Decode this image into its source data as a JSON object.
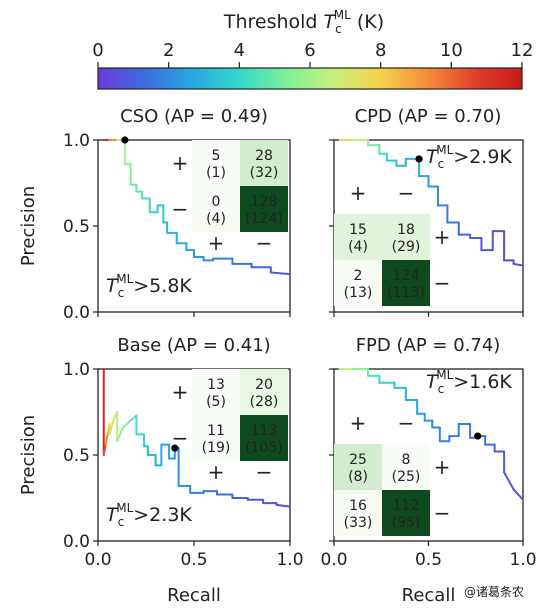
{
  "colorbar": {
    "label_main": "Threshold ",
    "label_symbol": "T",
    "label_sup": "ML",
    "label_sub": "c",
    "label_unit": " (K)",
    "ticks": [
      "0",
      "2",
      "4",
      "6",
      "8",
      "10",
      "12"
    ],
    "tick_values": [
      0,
      2,
      4,
      6,
      8,
      10,
      12
    ],
    "range": [
      0,
      12
    ],
    "colormap": [
      "#6a3bd8",
      "#3d6de0",
      "#28a8e2",
      "#33d9c7",
      "#7ef09a",
      "#c8f07a",
      "#f4d24a",
      "#f58c3a",
      "#e0402c",
      "#c81a1a"
    ]
  },
  "axis_text": {
    "xlabel": "Recall",
    "ylabel": "Precision",
    "xticks": [
      "0.0",
      "0.5",
      "1.0"
    ],
    "yticks": [
      "0.0",
      "0.5",
      "1.0"
    ]
  },
  "watermark": "@诸葛条农",
  "chart_data": [
    {
      "type": "line",
      "title": "CSO (AP = 0.49)",
      "xlabel": "Recall",
      "ylabel": "Precision",
      "xlim": [
        0,
        1
      ],
      "ylim": [
        0,
        1
      ],
      "threshold_label": ">5.8K",
      "threshold_point": {
        "x": 0.14,
        "y": 1.0
      },
      "series": [
        {
          "x": [
            0.03,
            0.06,
            0.1,
            0.14,
            0.14,
            0.17,
            0.17,
            0.2,
            0.2,
            0.23,
            0.23,
            0.27,
            0.27,
            0.31,
            0.31,
            0.34,
            0.34,
            0.36,
            0.36,
            0.41,
            0.41,
            0.46,
            0.46,
            0.5,
            0.5,
            0.55,
            0.55,
            0.6,
            0.6,
            0.7,
            0.7,
            0.8,
            0.8,
            0.9,
            0.9,
            1.0
          ],
          "y": [
            1.0,
            1.0,
            1.0,
            1.0,
            0.86,
            0.86,
            0.74,
            0.74,
            0.7,
            0.7,
            0.66,
            0.66,
            0.58,
            0.58,
            0.62,
            0.62,
            0.52,
            0.52,
            0.46,
            0.46,
            0.4,
            0.4,
            0.36,
            0.36,
            0.32,
            0.32,
            0.3,
            0.3,
            0.31,
            0.31,
            0.28,
            0.28,
            0.26,
            0.26,
            0.23,
            0.22
          ],
          "t": [
            12.0,
            10.5,
            8.0,
            6.4,
            5.8,
            5.5,
            5.2,
            5.0,
            4.8,
            4.6,
            4.4,
            4.2,
            4.0,
            3.8,
            3.6,
            3.5,
            3.3,
            3.2,
            3.0,
            2.9,
            2.8,
            2.6,
            2.5,
            2.4,
            2.3,
            2.1,
            2.0,
            1.9,
            1.8,
            1.6,
            1.5,
            1.3,
            1.2,
            1.0,
            0.8,
            0.6
          ]
        }
      ],
      "matrix": {
        "rows": [
          {
            "sign": "+",
            "cells": [
              {
                "main": "5",
                "paren": "(1)",
                "shade": "#f7fcf5"
              },
              {
                "main": "28",
                "paren": "(32)",
                "shade": "#d4ecce"
              }
            ]
          },
          {
            "sign": "−",
            "cells": [
              {
                "main": "0",
                "paren": "(4)",
                "shade": "#f7fcf5"
              },
              {
                "main": "128",
                "paren": "(124)",
                "shade": "#0f4a1f"
              }
            ]
          }
        ],
        "col_signs": [
          "+",
          "−"
        ]
      }
    },
    {
      "type": "line",
      "title": "CPD (AP = 0.70)",
      "xlabel": "Recall",
      "ylabel": "Precision",
      "xlim": [
        0,
        1
      ],
      "ylim": [
        0,
        1
      ],
      "threshold_label": ">2.9K",
      "threshold_point": {
        "x": 0.45,
        "y": 0.89
      },
      "series": [
        {
          "x": [
            0.03,
            0.1,
            0.18,
            0.18,
            0.24,
            0.24,
            0.28,
            0.28,
            0.33,
            0.33,
            0.38,
            0.38,
            0.45,
            0.45,
            0.5,
            0.5,
            0.55,
            0.55,
            0.6,
            0.6,
            0.66,
            0.66,
            0.72,
            0.72,
            0.78,
            0.78,
            0.84,
            0.84,
            0.9,
            0.9,
            0.95,
            0.95,
            1.0
          ],
          "y": [
            1.0,
            1.0,
            1.0,
            0.97,
            0.97,
            0.92,
            0.92,
            0.88,
            0.88,
            0.85,
            0.85,
            0.89,
            0.89,
            0.79,
            0.79,
            0.73,
            0.73,
            0.62,
            0.62,
            0.52,
            0.52,
            0.45,
            0.45,
            0.43,
            0.43,
            0.36,
            0.36,
            0.47,
            0.47,
            0.3,
            0.3,
            0.28,
            0.27
          ],
          "t": [
            8.0,
            7.0,
            6.0,
            5.5,
            5.0,
            4.6,
            4.2,
            3.8,
            3.5,
            3.2,
            3.0,
            2.95,
            2.9,
            2.7,
            2.5,
            2.3,
            2.1,
            1.9,
            1.7,
            1.5,
            1.35,
            1.2,
            1.1,
            1.0,
            0.9,
            0.8,
            0.7,
            0.6,
            0.5,
            0.4,
            0.35,
            0.3,
            0.25
          ]
        }
      ],
      "matrix": {
        "rows": [
          {
            "sign": "+",
            "cells": [
              {
                "main": "15",
                "paren": "(4)",
                "shade": "#e2f3dd"
              },
              {
                "main": "18",
                "paren": "(29)",
                "shade": "#e2f3dd"
              }
            ]
          },
          {
            "sign": "−",
            "cells": [
              {
                "main": "2",
                "paren": "(13)",
                "shade": "#f7fcf5"
              },
              {
                "main": "124",
                "paren": "(113)",
                "shade": "#0f4a1f"
              }
            ]
          }
        ],
        "col_signs": [
          "+",
          "−"
        ]
      }
    },
    {
      "type": "line",
      "title": "Base (AP = 0.41)",
      "xlabel": "Recall",
      "ylabel": "Precision",
      "xlim": [
        0,
        1
      ],
      "ylim": [
        0,
        1
      ],
      "threshold_label": ">2.3K",
      "threshold_point": {
        "x": 0.4,
        "y": 0.54
      },
      "series": [
        {
          "x": [
            0.03,
            0.03,
            0.04,
            0.05,
            0.06,
            0.06,
            0.08,
            0.1,
            0.1,
            0.13,
            0.17,
            0.2,
            0.2,
            0.24,
            0.24,
            0.26,
            0.26,
            0.3,
            0.3,
            0.33,
            0.33,
            0.37,
            0.37,
            0.4,
            0.4,
            0.42,
            0.42,
            0.48,
            0.48,
            0.55,
            0.55,
            0.62,
            0.62,
            0.7,
            0.7,
            0.78,
            0.78,
            0.86,
            0.86,
            0.93,
            0.93,
            1.0
          ],
          "y": [
            1.0,
            0.5,
            0.56,
            0.62,
            0.68,
            0.62,
            0.7,
            0.75,
            0.58,
            0.66,
            0.7,
            0.73,
            0.62,
            0.62,
            0.55,
            0.55,
            0.5,
            0.5,
            0.44,
            0.44,
            0.56,
            0.56,
            0.48,
            0.48,
            0.54,
            0.54,
            0.32,
            0.32,
            0.28,
            0.28,
            0.29,
            0.29,
            0.27,
            0.27,
            0.25,
            0.25,
            0.24,
            0.24,
            0.22,
            0.22,
            0.21,
            0.2
          ],
          "t": [
            12.0,
            11.0,
            10.0,
            9.0,
            8.2,
            8.0,
            7.2,
            6.6,
            6.0,
            5.6,
            5.0,
            4.5,
            4.2,
            3.9,
            3.6,
            3.4,
            3.2,
            3.0,
            2.9,
            2.8,
            2.7,
            2.6,
            2.5,
            2.4,
            2.3,
            2.2,
            2.1,
            2.0,
            1.8,
            1.6,
            1.5,
            1.4,
            1.3,
            1.2,
            1.1,
            1.0,
            0.9,
            0.8,
            0.7,
            0.6,
            0.5,
            0.4
          ]
        }
      ],
      "matrix": {
        "rows": [
          {
            "sign": "+",
            "cells": [
              {
                "main": "13",
                "paren": "(5)",
                "shade": "#f7fcf5"
              },
              {
                "main": "20",
                "paren": "(28)",
                "shade": "#e8f6e3"
              }
            ]
          },
          {
            "sign": "−",
            "cells": [
              {
                "main": "11",
                "paren": "(19)",
                "shade": "#f7fcf5"
              },
              {
                "main": "113",
                "paren": "(105)",
                "shade": "#0f4a1f"
              }
            ]
          }
        ],
        "col_signs": [
          "+",
          "−"
        ]
      }
    },
    {
      "type": "line",
      "title": "FPD (AP = 0.74)",
      "xlabel": "Recall",
      "ylabel": "Precision",
      "xlim": [
        0,
        1
      ],
      "ylim": [
        0,
        1
      ],
      "threshold_label": ">1.6K",
      "threshold_point": {
        "x": 0.76,
        "y": 0.61
      },
      "series": [
        {
          "x": [
            0.03,
            0.1,
            0.18,
            0.18,
            0.24,
            0.24,
            0.32,
            0.32,
            0.38,
            0.38,
            0.44,
            0.44,
            0.48,
            0.48,
            0.52,
            0.52,
            0.56,
            0.56,
            0.61,
            0.61,
            0.66,
            0.66,
            0.72,
            0.72,
            0.76,
            0.76,
            0.8,
            0.8,
            0.85,
            0.85,
            0.9,
            0.9,
            0.95,
            1.0
          ],
          "y": [
            1.0,
            1.0,
            1.0,
            0.96,
            0.96,
            0.92,
            0.92,
            0.89,
            0.89,
            0.82,
            0.82,
            0.74,
            0.74,
            0.7,
            0.7,
            0.66,
            0.66,
            0.58,
            0.58,
            0.61,
            0.61,
            0.68,
            0.68,
            0.6,
            0.6,
            0.61,
            0.61,
            0.56,
            0.56,
            0.52,
            0.52,
            0.4,
            0.3,
            0.24
          ],
          "t": [
            7.0,
            6.0,
            5.2,
            4.8,
            4.4,
            4.0,
            3.6,
            3.3,
            3.0,
            2.8,
            2.6,
            2.4,
            2.3,
            2.2,
            2.1,
            2.0,
            1.95,
            1.9,
            1.85,
            1.8,
            1.75,
            1.7,
            1.65,
            1.62,
            1.6,
            1.5,
            1.4,
            1.3,
            1.2,
            1.0,
            0.9,
            0.8,
            0.6,
            0.4
          ]
        }
      ],
      "matrix": {
        "rows": [
          {
            "sign": "+",
            "cells": [
              {
                "main": "25",
                "paren": "(8)",
                "shade": "#d4ecce"
              },
              {
                "main": "8",
                "paren": "(25)",
                "shade": "#f7fcf5"
              }
            ]
          },
          {
            "sign": "−",
            "cells": [
              {
                "main": "16",
                "paren": "(33)",
                "shade": "#f7fcf5"
              },
              {
                "main": "112",
                "paren": "(95)",
                "shade": "#0f4a1f"
              }
            ]
          }
        ],
        "col_signs": [
          "+",
          "−"
        ]
      }
    }
  ]
}
